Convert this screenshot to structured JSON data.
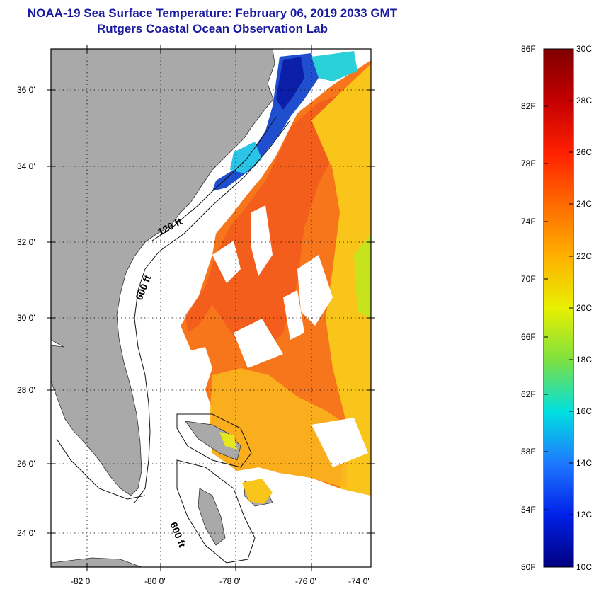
{
  "title": {
    "line1": "NOAA-19 Sea Surface Temperature:  February 06, 2019 2033 GMT",
    "line2": "Rutgers Coastal Ocean Observation Lab"
  },
  "map": {
    "lat_labels": [
      "36 0'",
      "34 0'",
      "32 0'",
      "30 0'",
      "28 0'",
      "26 0'",
      "24 0'"
    ],
    "lon_labels": [
      "-82 0'",
      "-80 0'",
      "-78 0'",
      "-76 0'",
      "-74 0'"
    ],
    "isobaths": [
      "120 ft",
      "600 ft",
      "600 ft"
    ],
    "colors": {
      "land": "#a9a9a9",
      "ocean_cloud": "#ffffff",
      "warm": "#f7761c",
      "cool": "#f9c51a"
    }
  },
  "colorbar": {
    "fahrenheit_labels": [
      "86F",
      "82F",
      "78F",
      "74F",
      "70F",
      "66F",
      "62F",
      "58F",
      "54F",
      "50F"
    ],
    "celsius_labels": [
      "30C",
      "28C",
      "26C",
      "24C",
      "22C",
      "20C",
      "18C",
      "16C",
      "14C",
      "12C",
      "10C"
    ]
  }
}
